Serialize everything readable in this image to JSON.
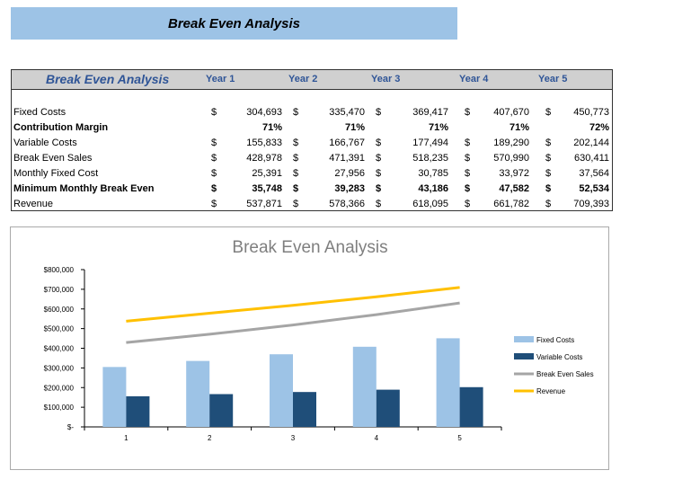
{
  "banner": {
    "title": "Break Even Analysis"
  },
  "table": {
    "title": "Break Even Analysis",
    "years": [
      "Year 1",
      "Year 2",
      "Year 3",
      "Year 4",
      "Year 5"
    ],
    "rows": [
      {
        "label": "Fixed Costs",
        "bold": false,
        "currency": true,
        "values": [
          "304,693",
          "335,470",
          "369,417",
          "407,670",
          "450,773"
        ]
      },
      {
        "label": "Contribution Margin",
        "bold": true,
        "currency": false,
        "values": [
          "71%",
          "71%",
          "71%",
          "71%",
          "72%"
        ]
      },
      {
        "label": "Variable Costs",
        "bold": false,
        "currency": true,
        "values": [
          "155,833",
          "166,767",
          "177,494",
          "189,290",
          "202,144"
        ]
      },
      {
        "label": "Break Even Sales",
        "bold": false,
        "currency": true,
        "values": [
          "428,978",
          "471,391",
          "518,235",
          "570,990",
          "630,411"
        ]
      },
      {
        "label": "Monthly Fixed Cost",
        "bold": false,
        "currency": true,
        "values": [
          "25,391",
          "27,956",
          "30,785",
          "33,972",
          "37,564"
        ]
      },
      {
        "label": "Minimum Monthly Break Even",
        "bold": true,
        "currency": true,
        "values": [
          "35,748",
          "39,283",
          "43,186",
          "47,582",
          "52,534"
        ]
      },
      {
        "label": "Revenue",
        "bold": false,
        "currency": true,
        "values": [
          "537,871",
          "578,366",
          "618,095",
          "661,782",
          "709,393"
        ]
      }
    ],
    "currency_symbol": "$"
  },
  "chart_data": {
    "type": "bar",
    "title": "Break Even Analysis",
    "categories": [
      "1",
      "2",
      "3",
      "4",
      "5"
    ],
    "ylim": [
      0,
      800000
    ],
    "yticks": [
      "$-",
      "$100,000",
      "$200,000",
      "$300,000",
      "$400,000",
      "$500,000",
      "$600,000",
      "$700,000",
      "$800,000"
    ],
    "grid": false,
    "legend": "right",
    "series": [
      {
        "name": "Fixed Costs",
        "kind": "bar",
        "color": "#9dc3e6",
        "values": [
          304693,
          335470,
          369417,
          407670,
          450773
        ]
      },
      {
        "name": "Variable Costs",
        "kind": "bar",
        "color": "#1f4e79",
        "values": [
          155833,
          166767,
          177494,
          189290,
          202144
        ]
      },
      {
        "name": "Break Even Sales",
        "kind": "line",
        "color": "#a5a5a5",
        "values": [
          428978,
          471391,
          518235,
          570990,
          630411
        ]
      },
      {
        "name": "Revenue",
        "kind": "line",
        "color": "#ffc000",
        "values": [
          537871,
          578366,
          618095,
          661782,
          709393
        ]
      }
    ]
  }
}
